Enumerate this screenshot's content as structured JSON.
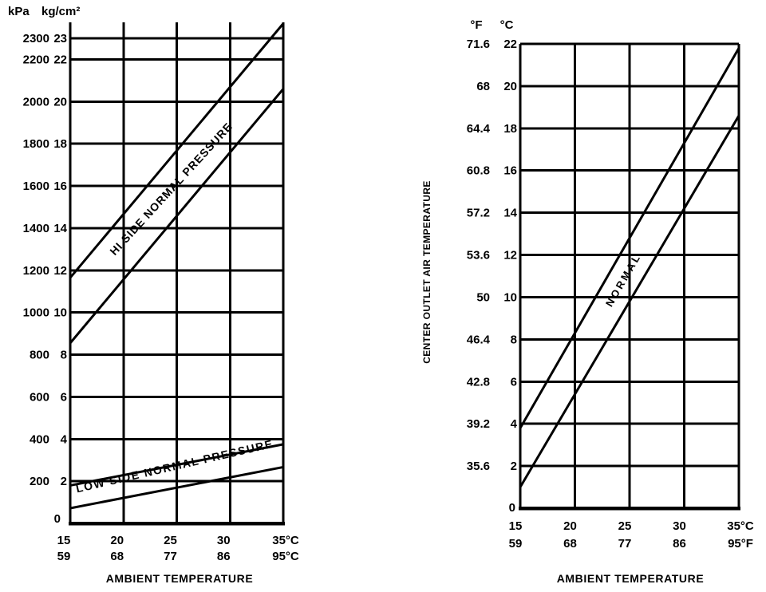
{
  "page": {
    "background": "#ffffff",
    "ink": "#000000"
  },
  "chart_data": [
    {
      "id": "refrigerant-pressure-chart",
      "type": "line",
      "title": "",
      "y_units": [
        "kPa",
        "kg/cm²"
      ],
      "xlabel": "AMBIENT TEMPERATURE",
      "xlim": [
        15,
        35
      ],
      "ylim": [
        0,
        2390
      ],
      "grid": "on",
      "legend": "none",
      "x_ticks": [
        {
          "v": 15,
          "c": "15",
          "f": "59"
        },
        {
          "v": 20,
          "c": "20",
          "f": "68"
        },
        {
          "v": 25,
          "c": "25",
          "f": "77"
        },
        {
          "v": 30,
          "c": "30",
          "f": "86"
        },
        {
          "v": 35,
          "c": "35°C",
          "f": "95°C"
        }
      ],
      "y_ticks": [
        {
          "v": 2300,
          "kpa": "2300",
          "kg": "23"
        },
        {
          "v": 2200,
          "kpa": "2200",
          "kg": "22"
        },
        {
          "v": 2000,
          "kpa": "2000",
          "kg": "20"
        },
        {
          "v": 1800,
          "kpa": "1800",
          "kg": "18"
        },
        {
          "v": 1600,
          "kpa": "1600",
          "kg": "16"
        },
        {
          "v": 1400,
          "kpa": "1400",
          "kg": "14"
        },
        {
          "v": 1200,
          "kpa": "1200",
          "kg": "12"
        },
        {
          "v": 1000,
          "kpa": "1000",
          "kg": "10"
        },
        {
          "v": 800,
          "kpa": "800",
          "kg": "8"
        },
        {
          "v": 600,
          "kpa": "600",
          "kg": "6"
        },
        {
          "v": 400,
          "kpa": "400",
          "kg": "4"
        },
        {
          "v": 200,
          "kpa": "200",
          "kg": "2"
        },
        {
          "v": 0,
          "kpa": "",
          "kg": "0"
        }
      ],
      "series": [
        {
          "name": "hi-side-normal-pressure-upper-bound",
          "units": "kPa",
          "x": [
            15,
            35
          ],
          "y": [
            1165,
            2370
          ]
        },
        {
          "name": "hi-side-normal-pressure-lower-bound",
          "units": "kPa",
          "x": [
            15,
            35
          ],
          "y": [
            855,
            2060
          ]
        },
        {
          "name": "low-side-normal-pressure-upper-bound",
          "units": "kPa",
          "x": [
            15,
            35
          ],
          "y": [
            180,
            375
          ]
        },
        {
          "name": "low-side-normal-pressure-lower-bound",
          "units": "kPa",
          "x": [
            15,
            35
          ],
          "y": [
            72,
            267
          ]
        }
      ],
      "band_labels": [
        {
          "text": "HI SIDE NORMAL PRESSURE"
        },
        {
          "text": "LOW SIDE NORMAL PRESSURE"
        }
      ]
    },
    {
      "id": "center-outlet-air-temperature-chart",
      "type": "line",
      "title": "",
      "y_units": [
        "°F",
        "°C"
      ],
      "xlabel": "AMBIENT TEMPERATURE",
      "ylabel": "CENTER OUTLET AIR TEMPERATURE",
      "xlim": [
        15,
        35
      ],
      "ylim": [
        0,
        22
      ],
      "grid": "on",
      "legend": "none",
      "x_ticks": [
        {
          "v": 15,
          "c": "15",
          "f": "59"
        },
        {
          "v": 20,
          "c": "20",
          "f": "68"
        },
        {
          "v": 25,
          "c": "25",
          "f": "77"
        },
        {
          "v": 30,
          "c": "30",
          "f": "86"
        },
        {
          "v": 35,
          "c": "35°C",
          "f": "95°F"
        }
      ],
      "y_ticks": [
        {
          "v": 22,
          "f": "71.6",
          "c": "22"
        },
        {
          "v": 20,
          "f": "68",
          "c": "20"
        },
        {
          "v": 18,
          "f": "64.4",
          "c": "18"
        },
        {
          "v": 16,
          "f": "60.8",
          "c": "16"
        },
        {
          "v": 14,
          "f": "57.2",
          "c": "14"
        },
        {
          "v": 12,
          "f": "53.6",
          "c": "12"
        },
        {
          "v": 10,
          "f": "50",
          "c": "10"
        },
        {
          "v": 8,
          "f": "46.4",
          "c": "8"
        },
        {
          "v": 6,
          "f": "42.8",
          "c": "6"
        },
        {
          "v": 4,
          "f": "39.2",
          "c": "4"
        },
        {
          "v": 2,
          "f": "35.6",
          "c": "2"
        },
        {
          "v": 0,
          "f": "",
          "c": "0"
        }
      ],
      "series": [
        {
          "name": "normal-band-upper-bound",
          "units": "°C",
          "x": [
            15,
            35
          ],
          "y": [
            3.8,
            21.8
          ]
        },
        {
          "name": "normal-band-lower-bound",
          "units": "°C",
          "x": [
            15,
            35
          ],
          "y": [
            1.0,
            18.6
          ]
        }
      ],
      "band_labels": [
        {
          "text": "NORMAL"
        }
      ]
    }
  ]
}
